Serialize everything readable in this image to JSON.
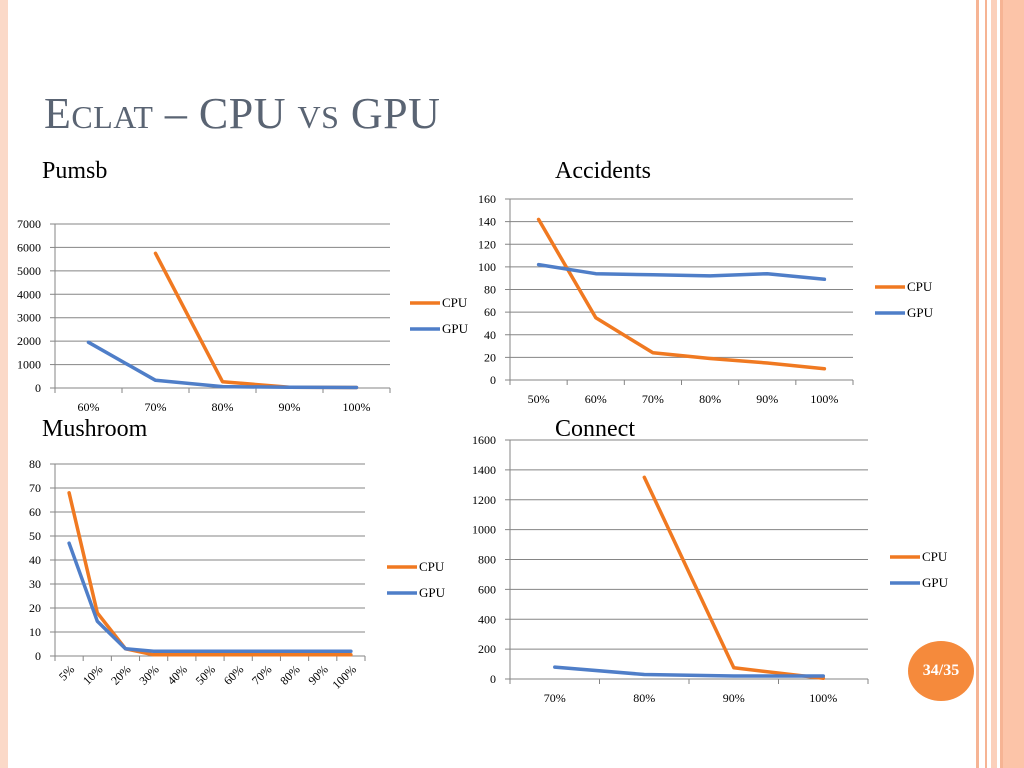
{
  "slide": {
    "title_big1": "E",
    "title_small1": "CLAT",
    "title_mid": " – CPU ",
    "title_small2": "VS",
    "title_end": " GPU",
    "page_badge": "34/35"
  },
  "colors": {
    "cpu": "#f07921",
    "gpu": "#4f7ec8",
    "grid": "#858585",
    "border": "#f4b596"
  },
  "chart_data": [
    {
      "type": "line",
      "label": "Pumsb",
      "categories": [
        "60%",
        "70%",
        "80%",
        "90%",
        "100%"
      ],
      "ylim": [
        0,
        7000
      ],
      "yticks": [
        0,
        1000,
        2000,
        3000,
        4000,
        5000,
        6000,
        7000
      ],
      "legend": "right",
      "grid": true,
      "series": [
        {
          "name": "CPU",
          "values": [
            null,
            5750,
            270,
            30,
            20
          ]
        },
        {
          "name": "GPU",
          "values": [
            1950,
            330,
            60,
            30,
            20
          ]
        }
      ]
    },
    {
      "type": "line",
      "label": "Accidents",
      "categories": [
        "50%",
        "60%",
        "70%",
        "80%",
        "90%",
        "100%"
      ],
      "ylim": [
        0,
        160
      ],
      "yticks": [
        0,
        20,
        40,
        60,
        80,
        100,
        120,
        140,
        160
      ],
      "legend": "right",
      "grid": true,
      "series": [
        {
          "name": "CPU",
          "values": [
            142,
            55,
            24,
            19,
            15,
            10
          ]
        },
        {
          "name": "GPU",
          "values": [
            102,
            94,
            93,
            92,
            94,
            89
          ]
        }
      ]
    },
    {
      "type": "line",
      "label": "Mushroom",
      "categories": [
        "5%",
        "10%",
        "20%",
        "30%",
        "40%",
        "50%",
        "60%",
        "70%",
        "80%",
        "90%",
        "100%"
      ],
      "ylim": [
        0,
        80
      ],
      "yticks": [
        0,
        10,
        20,
        30,
        40,
        50,
        60,
        70,
        80
      ],
      "legend": "right",
      "grid": true,
      "rotate_x": true,
      "series": [
        {
          "name": "CPU",
          "values": [
            68,
            18,
            3,
            0.5,
            0.5,
            0.5,
            0.5,
            0.5,
            0.5,
            0.5,
            0.5
          ]
        },
        {
          "name": "GPU",
          "values": [
            47,
            14.5,
            3,
            2,
            2,
            2,
            2,
            2,
            2,
            2,
            2
          ]
        }
      ]
    },
    {
      "type": "line",
      "label": "Connect",
      "categories": [
        "70%",
        "80%",
        "90%",
        "100%"
      ],
      "ylim": [
        0,
        1600
      ],
      "yticks": [
        0,
        200,
        400,
        600,
        800,
        1000,
        1200,
        1400,
        1600
      ],
      "legend": "right",
      "grid": true,
      "series": [
        {
          "name": "CPU",
          "values": [
            null,
            1350,
            75,
            5
          ]
        },
        {
          "name": "GPU",
          "values": [
            80,
            30,
            20,
            20
          ]
        }
      ]
    }
  ]
}
